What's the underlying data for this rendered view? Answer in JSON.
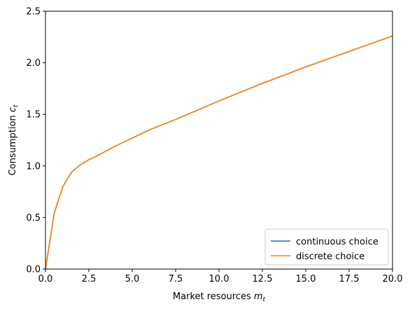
{
  "chart_data": {
    "type": "line",
    "xlabel_prefix": "Market resources ",
    "xlabel_var": "m",
    "xlabel_sub": "t",
    "ylabel_prefix": "Consumption ",
    "ylabel_var": "c",
    "ylabel_sub": "t",
    "xlim": [
      0.0,
      20.0
    ],
    "ylim": [
      0.0,
      2.5
    ],
    "xticks": [
      0.0,
      2.5,
      5.0,
      7.5,
      10.0,
      12.5,
      15.0,
      17.5,
      20.0
    ],
    "yticks": [
      0.0,
      0.5,
      1.0,
      1.5,
      2.0,
      2.5
    ],
    "xtick_labels": [
      "0.0",
      "2.5",
      "5.0",
      "7.5",
      "10.0",
      "12.5",
      "15.0",
      "17.5",
      "20.0"
    ],
    "ytick_labels": [
      "0.0",
      "0.5",
      "1.0",
      "1.5",
      "2.0",
      "2.5"
    ],
    "legend_placement": "lower-right",
    "series": [
      {
        "name": "continuous choice",
        "color": "#1f77b4",
        "x": [
          0.0,
          0.5,
          1.0,
          1.5,
          2.0,
          2.5,
          3.0,
          4.0,
          5.0,
          6.0,
          7.5,
          10.0,
          12.5,
          15.0,
          17.5,
          20.0
        ],
        "y": [
          0.0,
          0.54,
          0.8,
          0.94,
          1.01,
          1.06,
          1.1,
          1.19,
          1.27,
          1.35,
          1.45,
          1.63,
          1.8,
          1.96,
          2.11,
          2.26
        ]
      },
      {
        "name": "discrete choice",
        "color": "#ff7f0e",
        "x": [
          0.0,
          0.5,
          1.0,
          1.5,
          2.0,
          2.5,
          3.0,
          4.0,
          5.0,
          6.0,
          7.5,
          10.0,
          12.5,
          15.0,
          17.5,
          20.0
        ],
        "y": [
          0.0,
          0.54,
          0.8,
          0.94,
          1.01,
          1.06,
          1.1,
          1.19,
          1.27,
          1.35,
          1.45,
          1.63,
          1.8,
          1.96,
          2.11,
          2.26
        ]
      }
    ]
  }
}
